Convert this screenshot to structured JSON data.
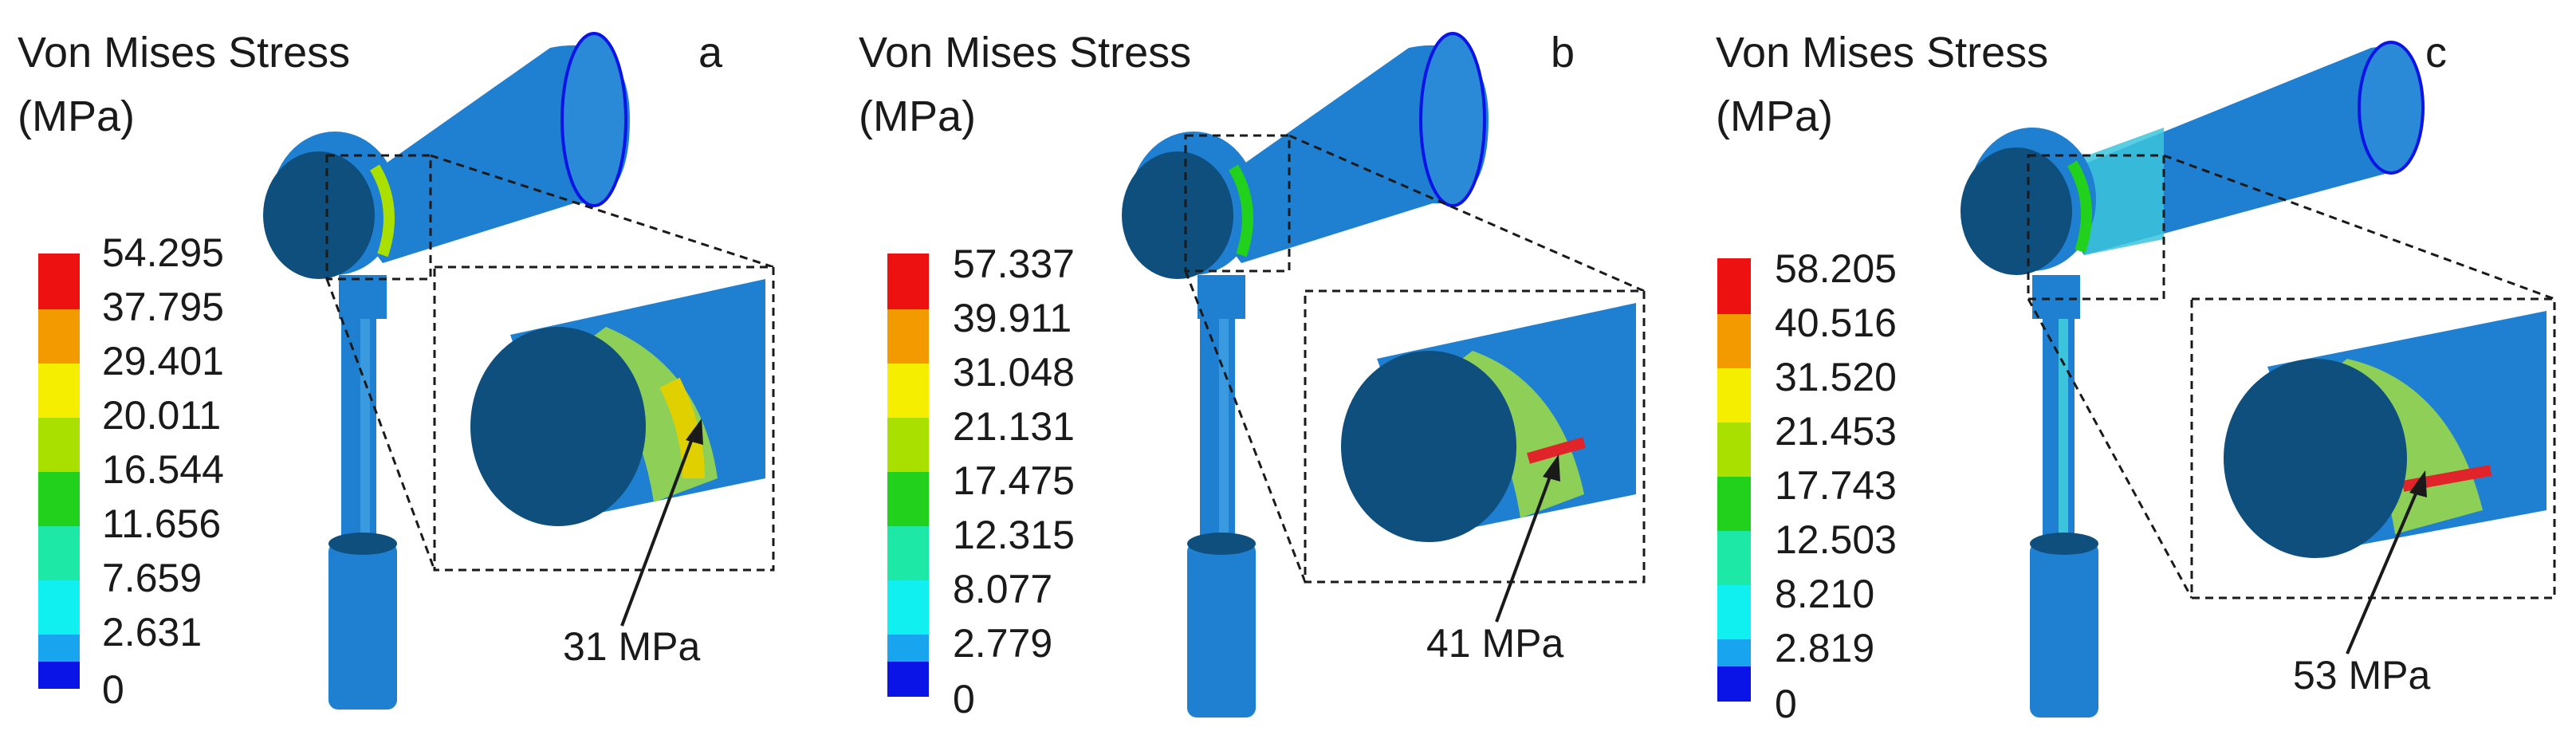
{
  "panels": [
    {
      "id": "a",
      "title_line1": "Von Mises Stress",
      "title_line2": "(MPa)",
      "letter": "a",
      "ticks": [
        "54.295",
        "37.795",
        "29.401",
        "20.011",
        "16.544",
        "11.656",
        "7.659",
        "2.631",
        "0"
      ],
      "callout": "31 MPa",
      "shape": "cone"
    },
    {
      "id": "b",
      "title_line1": "Von Mises Stress",
      "title_line2": "(MPa)",
      "letter": "b",
      "ticks": [
        "57.337",
        "39.911",
        "31.048",
        "21.131",
        "17.475",
        "12.315",
        "8.077",
        "2.779",
        "0"
      ],
      "callout": "41 MPa",
      "shape": "cone"
    },
    {
      "id": "c",
      "title_line1": "Von Mises Stress",
      "title_line2": "(MPa)",
      "letter": "c",
      "ticks": [
        "58.205",
        "40.516",
        "31.520",
        "21.453",
        "17.743",
        "12.503",
        "8.210",
        "2.819",
        "0"
      ],
      "callout": "53 MPa",
      "shape": "cylinder"
    }
  ],
  "colors": {
    "legend_bands": [
      "#ee1111",
      "#f39a00",
      "#f5ee00",
      "#a9e000",
      "#22d11c",
      "#1ee8a6",
      "#10f0f0",
      "#18a4ee",
      "#0a14e6"
    ],
    "model_blue": "#1f7fd0",
    "model_dark": "#0e4f7e",
    "model_cyan": "#3cc4dc",
    "stress_green": "#9ad84a",
    "stress_red": "#e0242a"
  }
}
